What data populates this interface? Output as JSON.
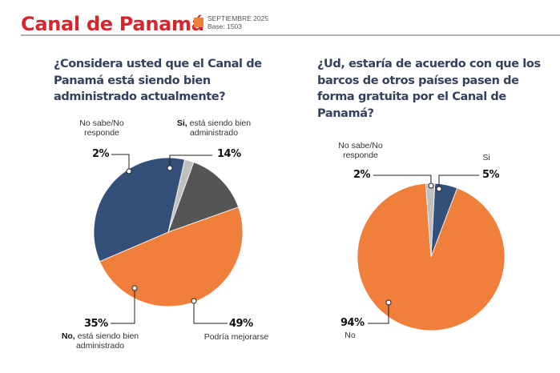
{
  "header": {
    "title": "Canal de Panamá",
    "date": "SEPTIEMBRE 2025",
    "base": "Base: 1503",
    "accent_color": "#d7262e"
  },
  "chart_data": [
    {
      "type": "pie",
      "title": "¿Considera usted que el Canal de Panamá está siendo bien administrado actualmente?",
      "categories": [
        "Si, está siendo bien administrado",
        "Podría mejorarse",
        "No, está siendo bien administrado",
        "No sabe/No responde"
      ],
      "values": [
        14,
        49,
        35,
        2
      ],
      "labels": [
        "14%",
        "49%",
        "35%",
        "2%"
      ],
      "colors": [
        "#555555",
        "#f07f3c",
        "#34507a",
        "#c0c0c0"
      ],
      "slices": [
        {
          "bold": "Si,",
          "text": " está siendo bien administrado",
          "pct": "14%"
        },
        {
          "bold": "",
          "text": "Podría mejorarse",
          "pct": "49%"
        },
        {
          "bold": "No,",
          "text": " está siendo bien administrado",
          "pct": "35%"
        },
        {
          "bold": "",
          "text": "No sabe/No responde",
          "pct": "2%"
        }
      ]
    },
    {
      "type": "pie",
      "title": "¿Ud, estaría de acuerdo con que los barcos de otros países pasen de forma gratuita por el Canal de Panamá?",
      "categories": [
        "Si",
        "No",
        "No sabe/No responde"
      ],
      "values": [
        5,
        94,
        2
      ],
      "labels": [
        "5%",
        "94%",
        "2%"
      ],
      "colors": [
        "#34507a",
        "#f07f3c",
        "#c0c0c0"
      ],
      "slices": [
        {
          "text": "Si",
          "pct": "5%"
        },
        {
          "text": "No",
          "pct": "94%"
        },
        {
          "text": "No sabe/No responde",
          "pct": "2%"
        }
      ]
    }
  ]
}
